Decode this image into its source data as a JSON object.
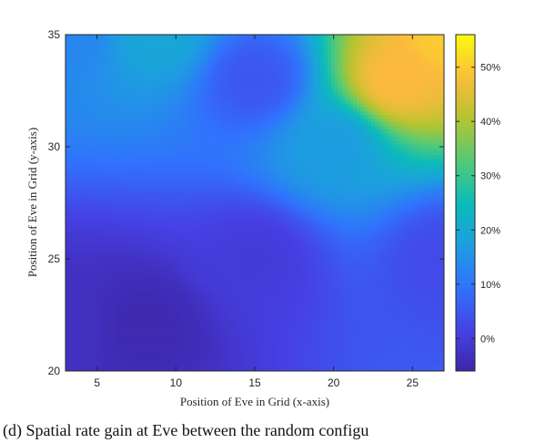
{
  "chart_data": {
    "type": "heatmap",
    "title": "",
    "xlabel": "Position of Eve in Grid (x-axis)",
    "ylabel": "Position of Eve in Grid (y-axis)",
    "xlim": [
      3,
      27
    ],
    "ylim": [
      20,
      35
    ],
    "x_ticks": [
      5,
      10,
      15,
      20,
      25
    ],
    "y_ticks": [
      20,
      25,
      30,
      35
    ],
    "colorbar": {
      "range": [
        -6,
        56
      ],
      "ticks": [
        0,
        10,
        20,
        30,
        40,
        50
      ],
      "tick_labels": [
        "0%",
        "10%",
        "20%",
        "30%",
        "40%",
        "50%"
      ],
      "colormap": "parula"
    },
    "sample_values": [
      {
        "x": 3,
        "y": 35,
        "value": 13
      },
      {
        "x": 9,
        "y": 35,
        "value": 19
      },
      {
        "x": 3,
        "y": 22,
        "value": -3
      },
      {
        "x": 8,
        "y": 22,
        "value": -5
      },
      {
        "x": 15,
        "y": 25,
        "value": 0
      },
      {
        "x": 20,
        "y": 30,
        "value": 17
      },
      {
        "x": 24,
        "y": 33,
        "value": 48
      },
      {
        "x": 27,
        "y": 35,
        "value": 50
      },
      {
        "x": 27,
        "y": 25,
        "value": 3
      },
      {
        "x": 15,
        "y": 33,
        "value": 5
      }
    ],
    "caption": "(d) Spatial rate gain at Eve between the random configu"
  }
}
